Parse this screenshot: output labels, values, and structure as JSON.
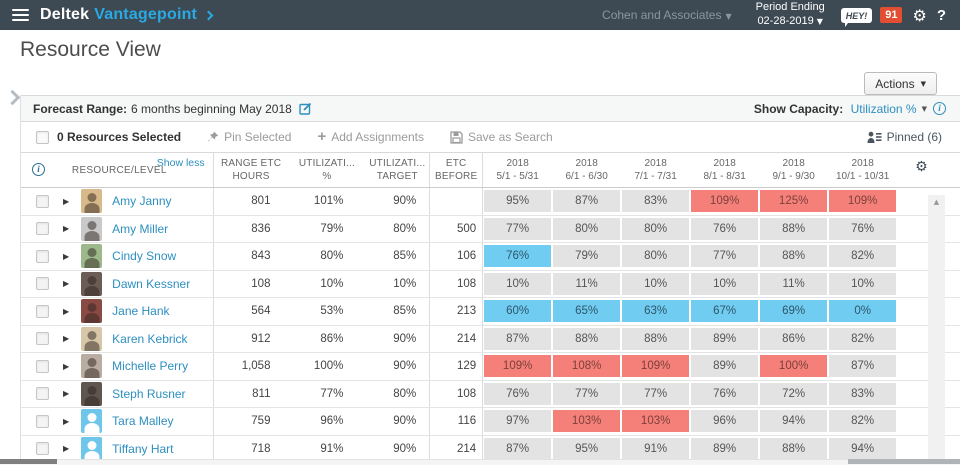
{
  "topbar": {
    "brand_deltek": "Deltek",
    "brand_product": "Vantagepoint",
    "company": "Cohen and Associates",
    "period_ending_label": "Period Ending",
    "period_ending_date": "02-28-2019",
    "hey_badge": "HEY!",
    "notification_count": "91",
    "help_label": "?",
    "colors": {
      "bar_bg": "#3d4a54",
      "product_blue": "#2aa9e2",
      "notification_badge": "#e14e31"
    }
  },
  "page": {
    "title": "Resource View",
    "actions_label": "Actions"
  },
  "forecast_bar": {
    "label": "Forecast Range:",
    "value": "6 months beginning May 2018",
    "show_capacity_label": "Show Capacity:",
    "show_capacity_value": "Utilization %",
    "info_glyph": "i"
  },
  "toolbar": {
    "selected_text": "0 Resources Selected",
    "pin_selected": "Pin Selected",
    "add_assignments": "Add Assignments",
    "save_as_search": "Save as Search",
    "pinned": "Pinned (6)"
  },
  "table": {
    "show_less": "Show less",
    "columns": {
      "resource": "RESOURCE/LEVEL",
      "range_etc": [
        "RANGE ETC",
        "HOURS"
      ],
      "utilization_pct": [
        "UTILIZATI...",
        "%"
      ],
      "utilization_target": [
        "UTILIZATI...",
        "TARGET"
      ],
      "etc_before": [
        "ETC",
        "BEFORE"
      ]
    },
    "months": [
      {
        "year": "2018",
        "range": "5/1 - 5/31"
      },
      {
        "year": "2018",
        "range": "6/1 - 6/30"
      },
      {
        "year": "2018",
        "range": "7/1 - 7/31"
      },
      {
        "year": "2018",
        "range": "8/1 - 8/31"
      },
      {
        "year": "2018",
        "range": "9/1 - 9/30"
      },
      {
        "year": "2018",
        "range": "10/1 - 10/31"
      }
    ],
    "cell_colors": {
      "normal": "#e3e3e3",
      "over": "#f5807a",
      "selected": "#70ccf0"
    },
    "rows": [
      {
        "name": "Amy Janny",
        "avatar": {
          "type": "photo",
          "color": "#d8b98a"
        },
        "range_etc_hours": "801",
        "utilization_pct": "101%",
        "utilization_target": "90%",
        "etc_before": "",
        "months": [
          {
            "value": "95%",
            "state": "normal"
          },
          {
            "value": "87%",
            "state": "normal"
          },
          {
            "value": "83%",
            "state": "normal"
          },
          {
            "value": "109%",
            "state": "over"
          },
          {
            "value": "125%",
            "state": "over"
          },
          {
            "value": "109%",
            "state": "over"
          }
        ]
      },
      {
        "name": "Amy Miller",
        "avatar": {
          "type": "photo",
          "color": "#c9c9c9"
        },
        "range_etc_hours": "836",
        "utilization_pct": "79%",
        "utilization_target": "80%",
        "etc_before": "500",
        "months": [
          {
            "value": "77%",
            "state": "normal"
          },
          {
            "value": "80%",
            "state": "normal"
          },
          {
            "value": "80%",
            "state": "normal"
          },
          {
            "value": "76%",
            "state": "normal"
          },
          {
            "value": "88%",
            "state": "normal"
          },
          {
            "value": "76%",
            "state": "normal"
          }
        ]
      },
      {
        "name": "Cindy Snow",
        "avatar": {
          "type": "photo",
          "color": "#9db88a"
        },
        "range_etc_hours": "843",
        "utilization_pct": "80%",
        "utilization_target": "85%",
        "etc_before": "106",
        "months": [
          {
            "value": "76%",
            "state": "selected"
          },
          {
            "value": "79%",
            "state": "normal"
          },
          {
            "value": "80%",
            "state": "normal"
          },
          {
            "value": "77%",
            "state": "normal"
          },
          {
            "value": "88%",
            "state": "normal"
          },
          {
            "value": "82%",
            "state": "normal"
          }
        ]
      },
      {
        "name": "Dawn Kessner",
        "avatar": {
          "type": "photo",
          "color": "#6b5d56"
        },
        "range_etc_hours": "108",
        "utilization_pct": "10%",
        "utilization_target": "10%",
        "etc_before": "108",
        "months": [
          {
            "value": "10%",
            "state": "normal"
          },
          {
            "value": "11%",
            "state": "normal"
          },
          {
            "value": "10%",
            "state": "normal"
          },
          {
            "value": "10%",
            "state": "normal"
          },
          {
            "value": "11%",
            "state": "normal"
          },
          {
            "value": "10%",
            "state": "normal"
          }
        ]
      },
      {
        "name": "Jane Hank",
        "avatar": {
          "type": "photo",
          "color": "#8a4a44"
        },
        "range_etc_hours": "564",
        "utilization_pct": "53%",
        "utilization_target": "85%",
        "etc_before": "213",
        "months": [
          {
            "value": "60%",
            "state": "selected"
          },
          {
            "value": "65%",
            "state": "selected"
          },
          {
            "value": "63%",
            "state": "selected"
          },
          {
            "value": "67%",
            "state": "selected"
          },
          {
            "value": "69%",
            "state": "selected"
          },
          {
            "value": "0%",
            "state": "selected"
          }
        ]
      },
      {
        "name": "Karen Kebrick",
        "avatar": {
          "type": "photo",
          "color": "#d7c7a8"
        },
        "range_etc_hours": "912",
        "utilization_pct": "86%",
        "utilization_target": "90%",
        "etc_before": "214",
        "months": [
          {
            "value": "87%",
            "state": "normal"
          },
          {
            "value": "88%",
            "state": "normal"
          },
          {
            "value": "88%",
            "state": "normal"
          },
          {
            "value": "89%",
            "state": "normal"
          },
          {
            "value": "86%",
            "state": "normal"
          },
          {
            "value": "82%",
            "state": "normal"
          }
        ]
      },
      {
        "name": "Michelle Perry",
        "avatar": {
          "type": "photo",
          "color": "#b9aca0"
        },
        "range_etc_hours": "1,058",
        "utilization_pct": "100%",
        "utilization_target": "90%",
        "etc_before": "129",
        "months": [
          {
            "value": "109%",
            "state": "over"
          },
          {
            "value": "108%",
            "state": "over"
          },
          {
            "value": "109%",
            "state": "over"
          },
          {
            "value": "89%",
            "state": "normal"
          },
          {
            "value": "100%",
            "state": "over"
          },
          {
            "value": "87%",
            "state": "normal"
          }
        ]
      },
      {
        "name": "Steph Rusner",
        "avatar": {
          "type": "photo",
          "color": "#5f5650"
        },
        "range_etc_hours": "811",
        "utilization_pct": "77%",
        "utilization_target": "80%",
        "etc_before": "108",
        "months": [
          {
            "value": "76%",
            "state": "normal"
          },
          {
            "value": "77%",
            "state": "normal"
          },
          {
            "value": "77%",
            "state": "normal"
          },
          {
            "value": "76%",
            "state": "normal"
          },
          {
            "value": "72%",
            "state": "normal"
          },
          {
            "value": "83%",
            "state": "normal"
          }
        ]
      },
      {
        "name": "Tara Malley",
        "avatar": {
          "type": "placeholder",
          "color": "#6ec6ea"
        },
        "range_etc_hours": "759",
        "utilization_pct": "96%",
        "utilization_target": "90%",
        "etc_before": "116",
        "months": [
          {
            "value": "97%",
            "state": "normal"
          },
          {
            "value": "103%",
            "state": "over"
          },
          {
            "value": "103%",
            "state": "over"
          },
          {
            "value": "96%",
            "state": "normal"
          },
          {
            "value": "94%",
            "state": "normal"
          },
          {
            "value": "82%",
            "state": "normal"
          }
        ]
      },
      {
        "name": "Tiffany Hart",
        "avatar": {
          "type": "placeholder",
          "color": "#6ec6ea"
        },
        "range_etc_hours": "718",
        "utilization_pct": "91%",
        "utilization_target": "90%",
        "etc_before": "214",
        "months": [
          {
            "value": "87%",
            "state": "normal"
          },
          {
            "value": "95%",
            "state": "normal"
          },
          {
            "value": "91%",
            "state": "normal"
          },
          {
            "value": "89%",
            "state": "normal"
          },
          {
            "value": "88%",
            "state": "normal"
          },
          {
            "value": "94%",
            "state": "normal"
          }
        ]
      }
    ]
  }
}
